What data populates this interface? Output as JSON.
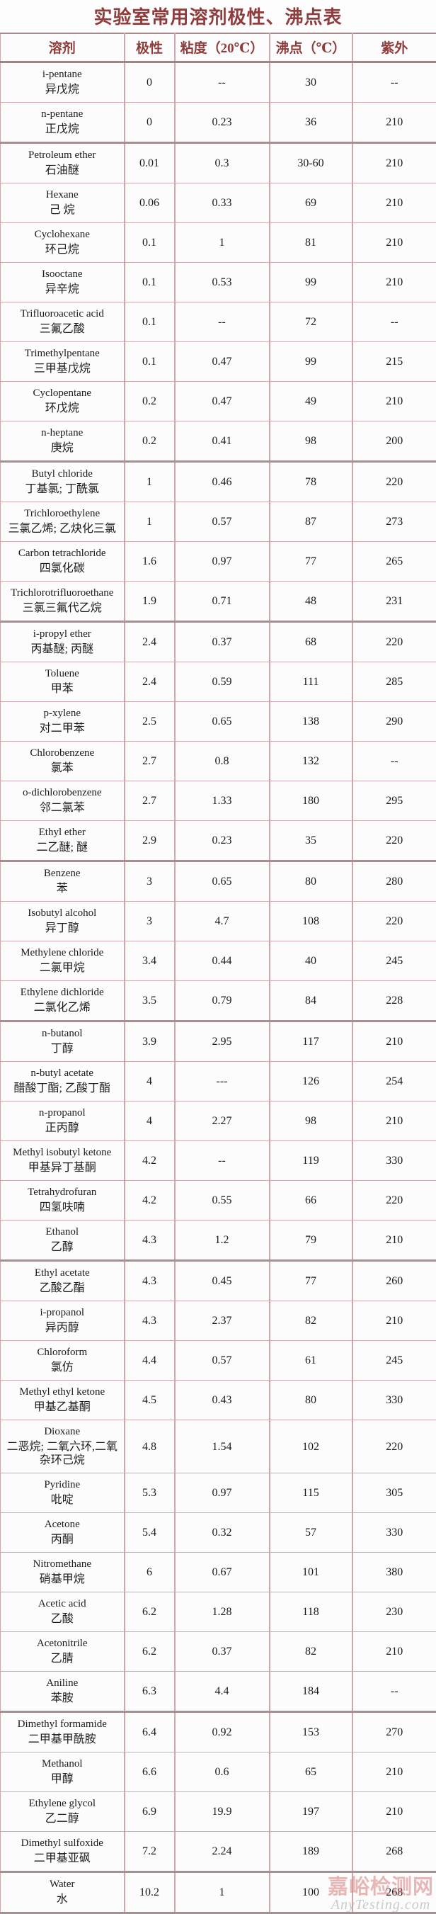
{
  "title": "实验室常用溶剂极性、沸点表",
  "columns": [
    "溶剂",
    "极性",
    "粘度（20℃）",
    "沸点（℃）",
    "紫外"
  ],
  "rows": [
    {
      "en": "i-pentane",
      "zh": "异戊烷",
      "polarity": "0",
      "viscosity": "--",
      "bp": "30",
      "uv": "--",
      "section_start": false
    },
    {
      "en": "n-pentane",
      "zh": "正戊烷",
      "polarity": "0",
      "viscosity": "0.23",
      "bp": "36",
      "uv": "210",
      "section_start": false
    },
    {
      "en": "Petroleum ether",
      "zh": "石油醚",
      "polarity": "0.01",
      "viscosity": "0.3",
      "bp": "30-60",
      "uv": "210",
      "section_start": true
    },
    {
      "en": "Hexane",
      "zh": "己 烷",
      "polarity": "0.06",
      "viscosity": "0.33",
      "bp": "69",
      "uv": "210",
      "section_start": false
    },
    {
      "en": "Cyclohexane",
      "zh": "环己烷",
      "polarity": "0.1",
      "viscosity": "1",
      "bp": "81",
      "uv": "210",
      "section_start": false
    },
    {
      "en": "Isooctane",
      "zh": "异辛烷",
      "polarity": "0.1",
      "viscosity": "0.53",
      "bp": "99",
      "uv": "210",
      "section_start": false
    },
    {
      "en": "Trifluoroacetic acid",
      "zh": "三氟乙酸",
      "polarity": "0.1",
      "viscosity": "--",
      "bp": "72",
      "uv": "--",
      "section_start": false
    },
    {
      "en": "Trimethylpentane",
      "zh": "三甲基戊烷",
      "polarity": "0.1",
      "viscosity": "0.47",
      "bp": "99",
      "uv": "215",
      "section_start": false
    },
    {
      "en": "Cyclopentane",
      "zh": "环戊烷",
      "polarity": "0.2",
      "viscosity": "0.47",
      "bp": "49",
      "uv": "210",
      "section_start": false
    },
    {
      "en": "n-heptane",
      "zh": "庚烷",
      "polarity": "0.2",
      "viscosity": "0.41",
      "bp": "98",
      "uv": "200",
      "section_start": false
    },
    {
      "en": "Butyl chloride",
      "zh": "丁基氯; 丁酰氯",
      "polarity": "1",
      "viscosity": "0.46",
      "bp": "78",
      "uv": "220",
      "section_start": true
    },
    {
      "en": "Trichloroethylene",
      "zh": "三氯乙烯; 乙炔化三氯",
      "polarity": "1",
      "viscosity": "0.57",
      "bp": "87",
      "uv": "273",
      "section_start": false
    },
    {
      "en": "Carbon tetrachloride",
      "zh": "四氯化碳",
      "polarity": "1.6",
      "viscosity": "0.97",
      "bp": "77",
      "uv": "265",
      "section_start": false
    },
    {
      "en": "Trichlorotrifluoroethane",
      "zh": "三氯三氟代乙烷",
      "polarity": "1.9",
      "viscosity": "0.71",
      "bp": "48",
      "uv": "231",
      "section_start": false
    },
    {
      "en": "i-propyl ether",
      "zh": "丙基醚; 丙醚",
      "polarity": "2.4",
      "viscosity": "0.37",
      "bp": "68",
      "uv": "220",
      "section_start": true
    },
    {
      "en": "Toluene",
      "zh": "甲苯",
      "polarity": "2.4",
      "viscosity": "0.59",
      "bp": "111",
      "uv": "285",
      "section_start": false
    },
    {
      "en": "p-xylene",
      "zh": "对二甲苯",
      "polarity": "2.5",
      "viscosity": "0.65",
      "bp": "138",
      "uv": "290",
      "section_start": false
    },
    {
      "en": "Chlorobenzene",
      "zh": "氯苯",
      "polarity": "2.7",
      "viscosity": "0.8",
      "bp": "132",
      "uv": "--",
      "section_start": false
    },
    {
      "en": "o-dichlorobenzene",
      "zh": "邻二氯苯",
      "polarity": "2.7",
      "viscosity": "1.33",
      "bp": "180",
      "uv": "295",
      "section_start": false
    },
    {
      "en": "Ethyl ether",
      "zh": "二乙醚; 醚",
      "polarity": "2.9",
      "viscosity": "0.23",
      "bp": "35",
      "uv": "220",
      "section_start": false
    },
    {
      "en": "Benzene",
      "zh": "苯",
      "polarity": "3",
      "viscosity": "0.65",
      "bp": "80",
      "uv": "280",
      "section_start": true
    },
    {
      "en": "Isobutyl alcohol",
      "zh": "异丁醇",
      "polarity": "3",
      "viscosity": "4.7",
      "bp": "108",
      "uv": "220",
      "section_start": false
    },
    {
      "en": "Methylene chloride",
      "zh": "二氯甲烷",
      "polarity": "3.4",
      "viscosity": "0.44",
      "bp": "40",
      "uv": "245",
      "section_start": false
    },
    {
      "en": "Ethylene dichloride",
      "zh": "二氯化乙烯",
      "polarity": "3.5",
      "viscosity": "0.79",
      "bp": "84",
      "uv": "228",
      "section_start": false
    },
    {
      "en": "n-butanol",
      "zh": "丁醇",
      "polarity": "3.9",
      "viscosity": "2.95",
      "bp": "117",
      "uv": "210",
      "section_start": true
    },
    {
      "en": "n-butyl acetate",
      "zh": "醋酸丁酯; 乙酸丁酯",
      "polarity": "4",
      "viscosity": "---",
      "bp": "126",
      "uv": "254",
      "section_start": false
    },
    {
      "en": "n-propanol",
      "zh": "正丙醇",
      "polarity": "4",
      "viscosity": "2.27",
      "bp": "98",
      "uv": "210",
      "section_start": false
    },
    {
      "en": "Methyl isobutyl ketone",
      "zh": "甲基异丁基酮",
      "polarity": "4.2",
      "viscosity": "--",
      "bp": "119",
      "uv": "330",
      "section_start": false
    },
    {
      "en": "Tetrahydrofuran",
      "zh": "四氢呋喃",
      "polarity": "4.2",
      "viscosity": "0.55",
      "bp": "66",
      "uv": "220",
      "section_start": false
    },
    {
      "en": "Ethanol",
      "zh": "乙醇",
      "polarity": "4.3",
      "viscosity": "1.2",
      "bp": "79",
      "uv": "210",
      "section_start": false
    },
    {
      "en": "Ethyl acetate",
      "zh": "乙酸乙酯",
      "polarity": "4.3",
      "viscosity": "0.45",
      "bp": "77",
      "uv": "260",
      "section_start": true
    },
    {
      "en": "i-propanol",
      "zh": "异丙醇",
      "polarity": "4.3",
      "viscosity": "2.37",
      "bp": "82",
      "uv": "210",
      "section_start": false
    },
    {
      "en": "Chloroform",
      "zh": "氯仿",
      "polarity": "4.4",
      "viscosity": "0.57",
      "bp": "61",
      "uv": "245",
      "section_start": false
    },
    {
      "en": "Methyl ethyl ketone",
      "zh": "甲基乙基酮",
      "polarity": "4.5",
      "viscosity": "0.43",
      "bp": "80",
      "uv": "330",
      "section_start": false
    },
    {
      "en": "Dioxane",
      "zh": "二恶烷; 二氧六环,二氧杂环己烷",
      "polarity": "4.8",
      "viscosity": "1.54",
      "bp": "102",
      "uv": "220",
      "section_start": false
    },
    {
      "en": "Pyridine",
      "zh": "吡啶",
      "polarity": "5.3",
      "viscosity": "0.97",
      "bp": "115",
      "uv": "305",
      "section_start": false
    },
    {
      "en": "Acetone",
      "zh": "丙酮",
      "polarity": "5.4",
      "viscosity": "0.32",
      "bp": "57",
      "uv": "330",
      "section_start": false
    },
    {
      "en": "Nitromethane",
      "zh": "硝基甲烷",
      "polarity": "6",
      "viscosity": "0.67",
      "bp": "101",
      "uv": "380",
      "section_start": false
    },
    {
      "en": "Acetic acid",
      "zh": "乙酸",
      "polarity": "6.2",
      "viscosity": "1.28",
      "bp": "118",
      "uv": "230",
      "section_start": false
    },
    {
      "en": "Acetonitrile",
      "zh": "乙腈",
      "polarity": "6.2",
      "viscosity": "0.37",
      "bp": "82",
      "uv": "210",
      "section_start": false
    },
    {
      "en": "Aniline",
      "zh": "苯胺",
      "polarity": "6.3",
      "viscosity": "4.4",
      "bp": "184",
      "uv": "--",
      "section_start": false
    },
    {
      "en": "Dimethyl formamide",
      "zh": "二甲基甲酰胺",
      "polarity": "6.4",
      "viscosity": "0.92",
      "bp": "153",
      "uv": "270",
      "section_start": true
    },
    {
      "en": "Methanol",
      "zh": "甲醇",
      "polarity": "6.6",
      "viscosity": "0.6",
      "bp": "65",
      "uv": "210",
      "section_start": false
    },
    {
      "en": "Ethylene glycol",
      "zh": "乙二醇",
      "polarity": "6.9",
      "viscosity": "19.9",
      "bp": "197",
      "uv": "210",
      "section_start": false
    },
    {
      "en": "Dimethyl sulfoxide",
      "zh": "二甲基亚砜",
      "polarity": "7.2",
      "viscosity": "2.24",
      "bp": "189",
      "uv": "268",
      "section_start": false
    },
    {
      "en": "Water",
      "zh": "水",
      "polarity": "10.2",
      "viscosity": "1",
      "bp": "100",
      "uv": "268",
      "section_start": true
    }
  ],
  "watermark": {
    "line1": "嘉峪检测网",
    "line2": "AnyTesting.com"
  },
  "colors": {
    "title_text": "#8e3c3c",
    "header_text": "#8e3c3c",
    "cell_text": "#1b1b1b",
    "grid_line": "#cfa6aa",
    "section_line": "#a29093",
    "watermark_pink": "#d67e7e",
    "watermark_gray": "#9e9e9e"
  }
}
